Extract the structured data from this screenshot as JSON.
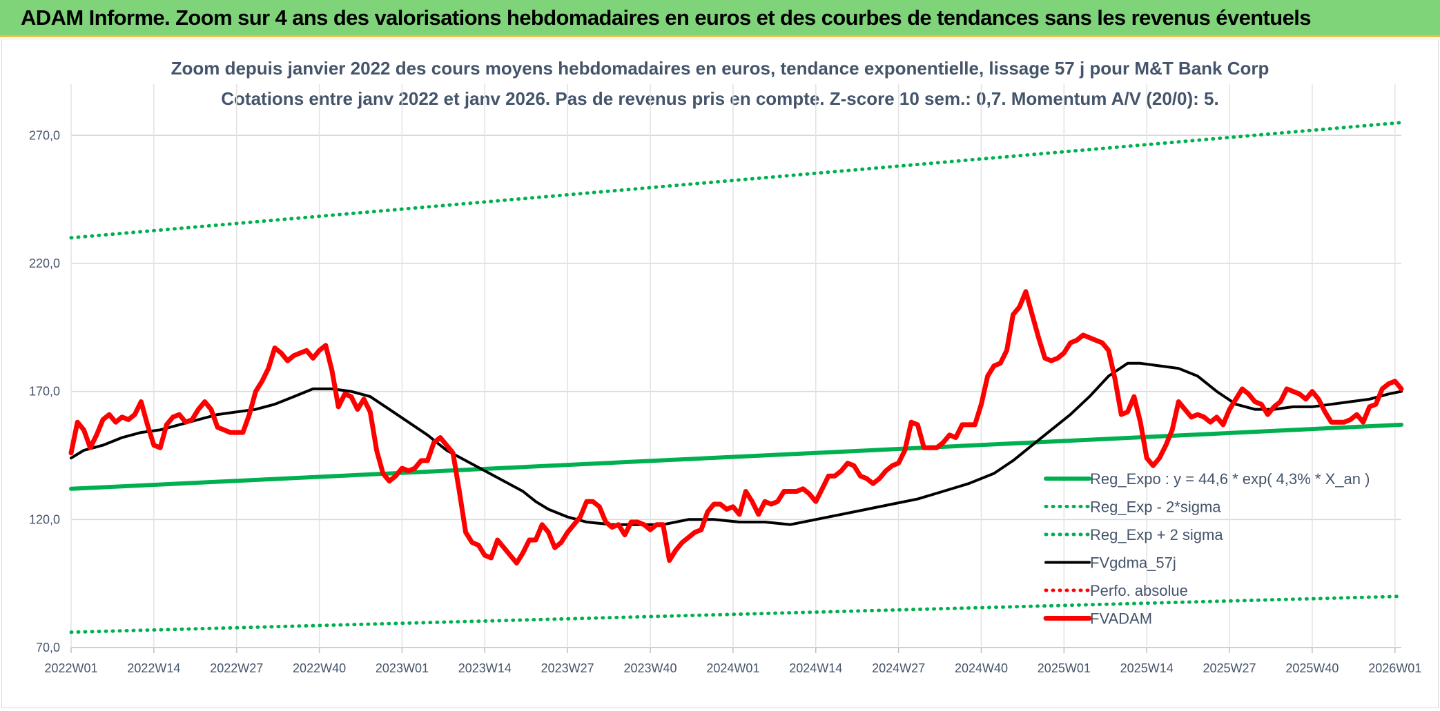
{
  "banner": {
    "title": "ADAM Informe. Zoom sur 4 ans des valorisations hebdomadaires en euros et des courbes de tendances sans les revenus éventuels"
  },
  "chart_data": {
    "type": "line",
    "title": "Zoom depuis janvier 2022 des cours moyens hebdomadaires en euros, tendance exponentielle, lissage 57 j pour M&T Bank Corp",
    "subtitle": "Cotations entre janv 2022 et janv 2026. Pas de revenus pris en compte. Z-score 10 sem.: 0,7. Momentum A/V (20/0): 5.",
    "y_ticks": [
      "270,0",
      "220,0",
      "170,0",
      "120,0",
      "70,0"
    ],
    "ylim": [
      70,
      290
    ],
    "x_ticks": [
      "2022W01",
      "2022W14",
      "2022W27",
      "2022W40",
      "2023W01",
      "2023W14",
      "2023W27",
      "2023W40",
      "2024W01",
      "2024W14",
      "2024W27",
      "2024W40",
      "2025W01",
      "2025W14",
      "2025W27",
      "2025W40",
      "2026W01"
    ],
    "x_weeks": 209,
    "grid": true,
    "legend_position": "right",
    "series": [
      {
        "name": "Reg_Expo : y = 44,6 * exp( 4,3% *  X_an )",
        "color": "#00b050",
        "style": "solid",
        "values": [
          [
            0,
            132
          ],
          [
            209,
            157
          ]
        ]
      },
      {
        "name": "Reg_Exp - 2*sigma",
        "color": "#00b050",
        "style": "dotted",
        "values": [
          [
            0,
            76
          ],
          [
            209,
            90
          ]
        ]
      },
      {
        "name": "Reg_Exp + 2 sigma",
        "color": "#00b050",
        "style": "dotted",
        "values": [
          [
            0,
            230
          ],
          [
            209,
            275
          ]
        ]
      },
      {
        "name": "FVgdma_57j",
        "color": "#000000",
        "style": "solid",
        "values": [
          [
            0,
            144
          ],
          [
            2,
            147
          ],
          [
            5,
            149
          ],
          [
            8,
            152
          ],
          [
            11,
            154
          ],
          [
            14,
            155
          ],
          [
            17,
            157
          ],
          [
            20,
            159
          ],
          [
            23,
            161
          ],
          [
            26,
            162
          ],
          [
            29,
            163
          ],
          [
            32,
            165
          ],
          [
            35,
            168
          ],
          [
            38,
            171
          ],
          [
            41,
            171
          ],
          [
            44,
            170
          ],
          [
            47,
            168
          ],
          [
            50,
            163
          ],
          [
            53,
            158
          ],
          [
            56,
            153
          ],
          [
            59,
            147
          ],
          [
            62,
            143
          ],
          [
            65,
            139
          ],
          [
            68,
            135
          ],
          [
            71,
            131
          ],
          [
            73,
            127
          ],
          [
            75,
            124
          ],
          [
            78,
            121
          ],
          [
            81,
            119
          ],
          [
            85,
            118
          ],
          [
            89,
            118
          ],
          [
            93,
            118
          ],
          [
            97,
            120
          ],
          [
            101,
            120
          ],
          [
            105,
            119
          ],
          [
            109,
            119
          ],
          [
            113,
            118
          ],
          [
            117,
            120
          ],
          [
            121,
            122
          ],
          [
            125,
            124
          ],
          [
            129,
            126
          ],
          [
            133,
            128
          ],
          [
            137,
            131
          ],
          [
            141,
            134
          ],
          [
            145,
            138
          ],
          [
            148,
            143
          ],
          [
            151,
            149
          ],
          [
            154,
            155
          ],
          [
            157,
            161
          ],
          [
            160,
            168
          ],
          [
            163,
            176
          ],
          [
            166,
            181
          ],
          [
            168,
            181
          ],
          [
            171,
            180
          ],
          [
            174,
            179
          ],
          [
            177,
            176
          ],
          [
            180,
            170
          ],
          [
            183,
            165
          ],
          [
            186,
            163
          ],
          [
            189,
            163
          ],
          [
            192,
            164
          ],
          [
            195,
            164
          ],
          [
            198,
            165
          ],
          [
            201,
            166
          ],
          [
            204,
            167
          ],
          [
            207,
            169
          ],
          [
            209,
            170
          ]
        ]
      },
      {
        "name": "Perfo. absolue",
        "color": "#ff0000",
        "style": "dotted",
        "values": []
      },
      {
        "name": "FVADAM",
        "color": "#ff0000",
        "style": "solid",
        "values": [
          [
            0,
            146
          ],
          [
            1,
            158
          ],
          [
            2,
            155
          ],
          [
            3,
            148
          ],
          [
            4,
            153
          ],
          [
            5,
            159
          ],
          [
            6,
            161
          ],
          [
            7,
            158
          ],
          [
            8,
            160
          ],
          [
            9,
            159
          ],
          [
            10,
            161
          ],
          [
            11,
            166
          ],
          [
            12,
            157
          ],
          [
            13,
            149
          ],
          [
            14,
            148
          ],
          [
            15,
            157
          ],
          [
            16,
            160
          ],
          [
            17,
            161
          ],
          [
            18,
            158
          ],
          [
            19,
            159
          ],
          [
            20,
            163
          ],
          [
            21,
            166
          ],
          [
            22,
            163
          ],
          [
            23,
            156
          ],
          [
            24,
            155
          ],
          [
            25,
            154
          ],
          [
            26,
            154
          ],
          [
            27,
            154
          ],
          [
            28,
            161
          ],
          [
            29,
            170
          ],
          [
            30,
            174
          ],
          [
            31,
            179
          ],
          [
            32,
            187
          ],
          [
            33,
            185
          ],
          [
            34,
            182
          ],
          [
            35,
            184
          ],
          [
            36,
            185
          ],
          [
            37,
            186
          ],
          [
            38,
            183
          ],
          [
            39,
            186
          ],
          [
            40,
            188
          ],
          [
            41,
            178
          ],
          [
            42,
            164
          ],
          [
            43,
            169
          ],
          [
            44,
            168
          ],
          [
            45,
            163
          ],
          [
            46,
            167
          ],
          [
            47,
            162
          ],
          [
            48,
            147
          ],
          [
            49,
            138
          ],
          [
            50,
            135
          ],
          [
            51,
            137
          ],
          [
            52,
            140
          ],
          [
            53,
            139
          ],
          [
            54,
            140
          ],
          [
            55,
            143
          ],
          [
            56,
            143
          ],
          [
            57,
            150
          ],
          [
            58,
            152
          ],
          [
            59,
            149
          ],
          [
            60,
            146
          ],
          [
            61,
            131
          ],
          [
            62,
            115
          ],
          [
            63,
            111
          ],
          [
            64,
            110
          ],
          [
            65,
            106
          ],
          [
            66,
            105
          ],
          [
            67,
            112
          ],
          [
            68,
            109
          ],
          [
            69,
            106
          ],
          [
            70,
            103
          ],
          [
            71,
            107
          ],
          [
            72,
            112
          ],
          [
            73,
            112
          ],
          [
            74,
            118
          ],
          [
            75,
            115
          ],
          [
            76,
            109
          ],
          [
            77,
            111
          ],
          [
            78,
            115
          ],
          [
            79,
            118
          ],
          [
            80,
            121
          ],
          [
            81,
            127
          ],
          [
            82,
            127
          ],
          [
            83,
            125
          ],
          [
            84,
            119
          ],
          [
            85,
            117
          ],
          [
            86,
            118
          ],
          [
            87,
            114
          ],
          [
            88,
            119
          ],
          [
            89,
            119
          ],
          [
            90,
            118
          ],
          [
            91,
            116
          ],
          [
            92,
            118
          ],
          [
            93,
            118
          ],
          [
            94,
            104
          ],
          [
            95,
            108
          ],
          [
            96,
            111
          ],
          [
            97,
            113
          ],
          [
            98,
            115
          ],
          [
            99,
            116
          ],
          [
            100,
            123
          ],
          [
            101,
            126
          ],
          [
            102,
            126
          ],
          [
            103,
            124
          ],
          [
            104,
            125
          ],
          [
            105,
            122
          ],
          [
            106,
            131
          ],
          [
            107,
            127
          ],
          [
            108,
            122
          ],
          [
            109,
            127
          ],
          [
            110,
            126
          ],
          [
            111,
            127
          ],
          [
            112,
            131
          ],
          [
            113,
            131
          ],
          [
            114,
            131
          ],
          [
            115,
            132
          ],
          [
            116,
            130
          ],
          [
            117,
            127
          ],
          [
            118,
            132
          ],
          [
            119,
            137
          ],
          [
            120,
            137
          ],
          [
            121,
            139
          ],
          [
            122,
            142
          ],
          [
            123,
            141
          ],
          [
            124,
            137
          ],
          [
            125,
            136
          ],
          [
            126,
            134
          ],
          [
            127,
            136
          ],
          [
            128,
            139
          ],
          [
            129,
            141
          ],
          [
            130,
            142
          ],
          [
            131,
            147
          ],
          [
            132,
            158
          ],
          [
            133,
            157
          ],
          [
            134,
            148
          ],
          [
            135,
            148
          ],
          [
            136,
            148
          ],
          [
            137,
            150
          ],
          [
            138,
            153
          ],
          [
            139,
            152
          ],
          [
            140,
            157
          ],
          [
            141,
            157
          ],
          [
            142,
            157
          ],
          [
            143,
            165
          ],
          [
            144,
            176
          ],
          [
            145,
            180
          ],
          [
            146,
            181
          ],
          [
            147,
            186
          ],
          [
            148,
            200
          ],
          [
            149,
            203
          ],
          [
            150,
            209
          ],
          [
            151,
            200
          ],
          [
            152,
            191
          ],
          [
            153,
            183
          ],
          [
            154,
            182
          ],
          [
            155,
            183
          ],
          [
            156,
            185
          ],
          [
            157,
            189
          ],
          [
            158,
            190
          ],
          [
            159,
            192
          ],
          [
            160,
            191
          ],
          [
            161,
            190
          ],
          [
            162,
            189
          ],
          [
            163,
            186
          ],
          [
            164,
            175
          ],
          [
            165,
            161
          ],
          [
            166,
            162
          ],
          [
            167,
            168
          ],
          [
            168,
            158
          ],
          [
            169,
            144
          ],
          [
            170,
            141
          ],
          [
            171,
            144
          ],
          [
            172,
            149
          ],
          [
            173,
            155
          ],
          [
            174,
            166
          ],
          [
            175,
            163
          ],
          [
            176,
            160
          ],
          [
            177,
            161
          ],
          [
            178,
            160
          ],
          [
            179,
            158
          ],
          [
            180,
            160
          ],
          [
            181,
            157
          ],
          [
            182,
            163
          ],
          [
            183,
            167
          ],
          [
            184,
            171
          ],
          [
            185,
            169
          ],
          [
            186,
            166
          ],
          [
            187,
            165
          ],
          [
            188,
            161
          ],
          [
            189,
            164
          ],
          [
            190,
            166
          ],
          [
            191,
            171
          ],
          [
            192,
            170
          ],
          [
            193,
            169
          ],
          [
            194,
            167
          ],
          [
            195,
            170
          ],
          [
            196,
            167
          ],
          [
            197,
            162
          ],
          [
            198,
            158
          ],
          [
            199,
            158
          ],
          [
            200,
            158
          ],
          [
            201,
            159
          ],
          [
            202,
            161
          ],
          [
            203,
            158
          ],
          [
            204,
            164
          ],
          [
            205,
            165
          ],
          [
            206,
            171
          ],
          [
            207,
            173
          ],
          [
            208,
            174
          ],
          [
            209,
            171
          ]
        ]
      }
    ]
  }
}
